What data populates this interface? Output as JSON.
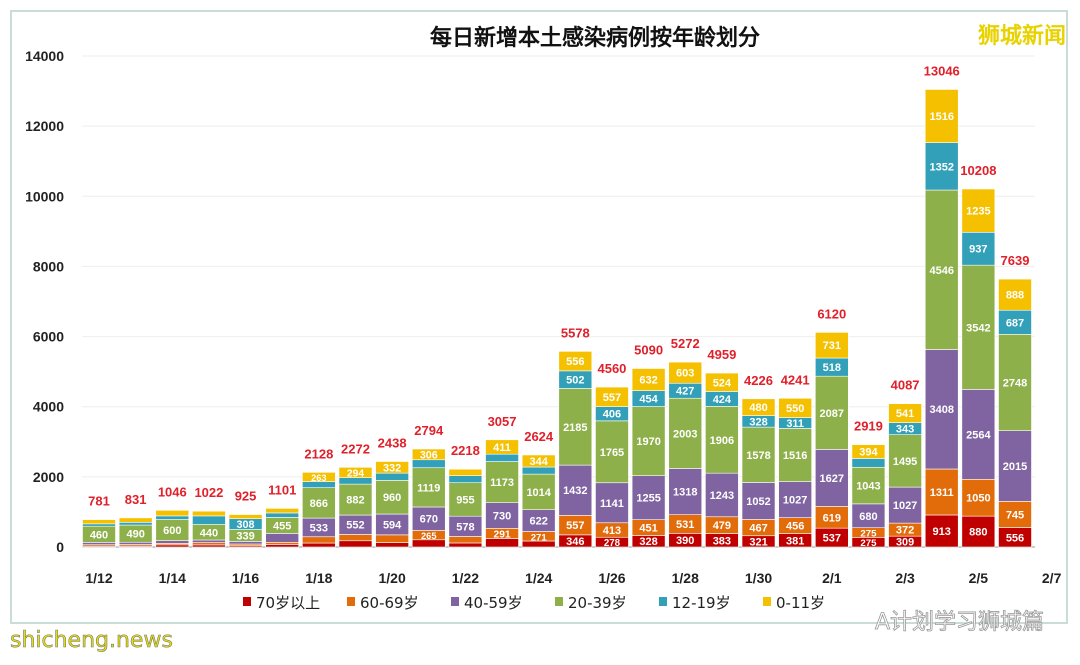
{
  "chart_data": {
    "type": "bar",
    "stacked": true,
    "title": "每日新增本土感染病例按年龄划分",
    "categories": [
      "1/12",
      "1/13",
      "1/14",
      "1/15",
      "1/16",
      "1/17",
      "1/18",
      "1/19",
      "1/20",
      "1/21",
      "1/22",
      "1/23",
      "1/24",
      "1/25",
      "1/26",
      "1/27",
      "1/28",
      "1/29",
      "1/30",
      "1/31",
      "2/1",
      "2/2",
      "2/3",
      "2/4",
      "2/5",
      "2/6"
    ],
    "xtick_labels": [
      "1/12",
      "1/14",
      "1/16",
      "1/18",
      "1/20",
      "1/22",
      "1/24",
      "1/26",
      "1/28",
      "1/30",
      "2/1",
      "2/3",
      "2/5",
      "2/7"
    ],
    "ylim": [
      0,
      14000
    ],
    "yticks": [
      0,
      2000,
      4000,
      6000,
      8000,
      10000,
      12000,
      14000
    ],
    "grid": true,
    "legend_position": "bottom",
    "totals": [
      781,
      831,
      1046,
      1022,
      925,
      1101,
      2128,
      2272,
      2438,
      2794,
      2218,
      3057,
      2624,
      5578,
      4560,
      5090,
      5272,
      4959,
      4226,
      4241,
      6120,
      2919,
      4087,
      13046,
      10208,
      7639
    ],
    "series": [
      {
        "name": "70岁以上",
        "color": "#c00000",
        "values": [
          25,
          25,
          61,
          60,
          35,
          74,
          113,
          178,
          129,
          206,
          115,
          242,
          171,
          346,
          278,
          328,
          390,
          383,
          321,
          381,
          537,
          275,
          309,
          913,
          880,
          556
        ]
      },
      {
        "name": "60-69岁",
        "color": "#e36c0a",
        "values": [
          40,
          45,
          43,
          65,
          50,
          60,
          179,
          181,
          217,
          265,
          185,
          291,
          271,
          557,
          413,
          451,
          531,
          479,
          467,
          456,
          619,
          275,
          372,
          1311,
          1050,
          745
        ]
      },
      {
        "name": "40-59岁",
        "color": "#8064a2",
        "values": [
          68,
          66,
          79,
          75,
          75,
          254,
          533,
          552,
          594,
          670,
          578,
          730,
          622,
          1432,
          1141,
          1255,
          1318,
          1243,
          1052,
          1027,
          1627,
          680,
          1027,
          3408,
          2564,
          2015
        ]
      },
      {
        "name": "20-39岁",
        "color": "#8db04a",
        "values": [
          460,
          490,
          600,
          440,
          339,
          455,
          866,
          882,
          960,
          1119,
          955,
          1173,
          1014,
          2185,
          1765,
          1970,
          2003,
          1906,
          1578,
          1516,
          2087,
          1043,
          1495,
          4546,
          3542,
          2748
        ]
      },
      {
        "name": "12-19岁",
        "color": "#31a0b8",
        "values": [
          67,
          78,
          104,
          247,
          308,
          128,
          174,
          185,
          206,
          228,
          201,
          210,
          202,
          502,
          406,
          454,
          427,
          424,
          328,
          311,
          518,
          252,
          343,
          1352,
          937,
          687
        ]
      },
      {
        "name": "0-11岁",
        "color": "#f5c000",
        "values": [
          121,
          127,
          159,
          135,
          118,
          130,
          263,
          294,
          332,
          306,
          184,
          411,
          344,
          556,
          557,
          632,
          603,
          524,
          480,
          550,
          731,
          394,
          541,
          1516,
          1235,
          888
        ]
      }
    ],
    "total_label_color": "#e0202a"
  },
  "watermarks": {
    "top_right": "狮城新闻",
    "bottom_right": "A计划学习狮城篇",
    "bottom_left": "shicheng.news"
  }
}
